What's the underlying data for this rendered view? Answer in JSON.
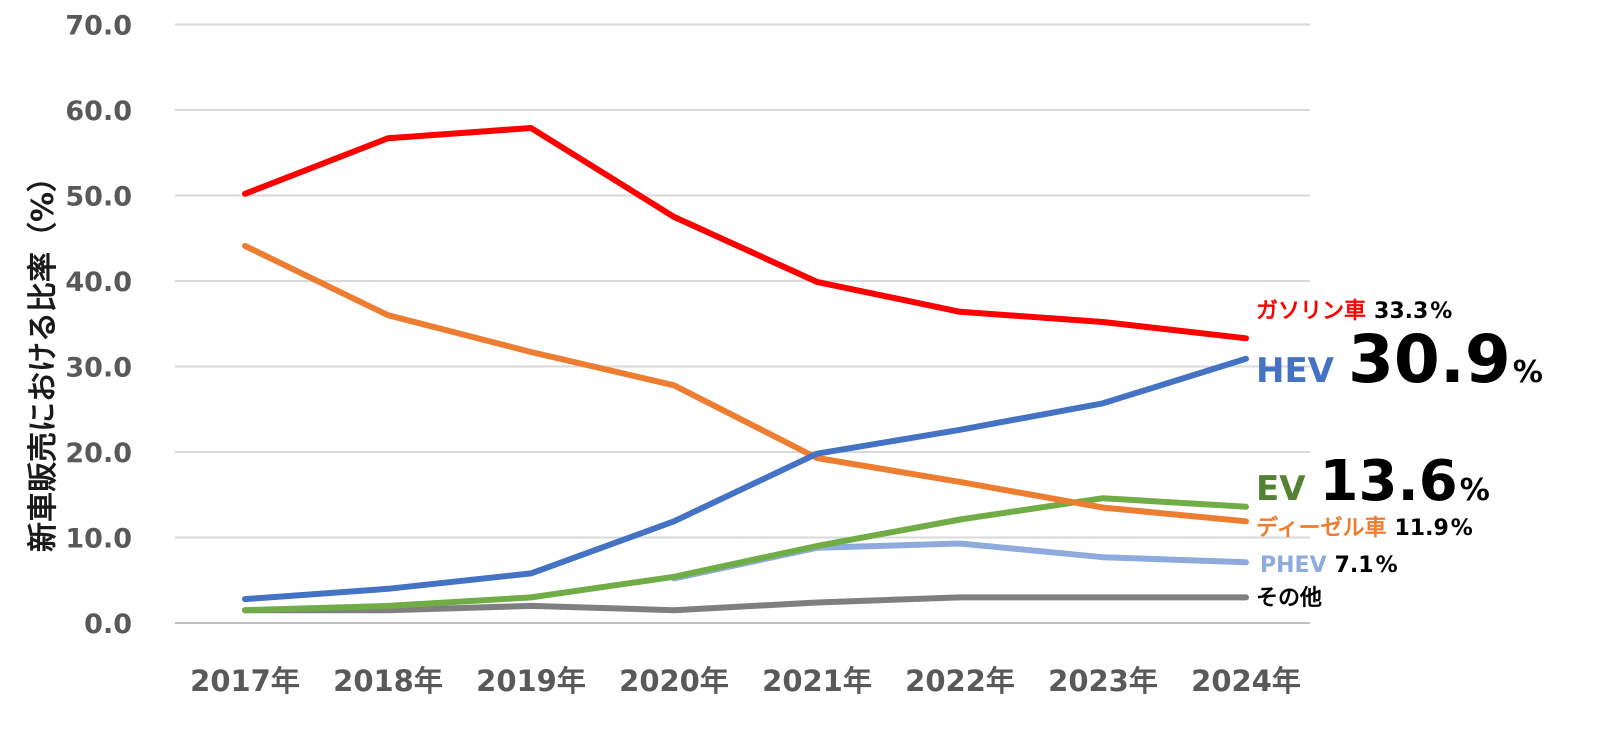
{
  "chart_data": {
    "type": "line",
    "title": "",
    "xlabel": "",
    "ylabel": "新車販売における比率（%）",
    "x": [
      "2017年",
      "2018年",
      "2019年",
      "2020年",
      "2021年",
      "2022年",
      "2023年",
      "2024年"
    ],
    "y_ticks": [
      "0.0",
      "10.0",
      "20.0",
      "30.0",
      "40.0",
      "50.0",
      "60.0",
      "70.0"
    ],
    "ylim": [
      0,
      70
    ],
    "grid": true,
    "series": [
      {
        "name": "ガソリン車",
        "color": "#ff0000",
        "values": [
          50.2,
          56.7,
          57.9,
          47.5,
          39.9,
          36.4,
          35.2,
          33.3
        ],
        "end_value": "33.3",
        "end_unit": "%"
      },
      {
        "name": "HEV",
        "color": "#4472c4",
        "values": [
          2.8,
          4.0,
          5.8,
          11.9,
          19.8,
          22.6,
          25.7,
          30.9
        ],
        "end_value": "30.9",
        "end_unit": "%"
      },
      {
        "name": "EV",
        "color": "#548235",
        "line_color": "#70ad47",
        "values": [
          1.5,
          2.0,
          3.0,
          5.4,
          9.0,
          12.1,
          14.6,
          13.6
        ],
        "end_value": "13.6",
        "end_unit": "%"
      },
      {
        "name": "ディーゼル車",
        "color": "#ed7d31",
        "values": [
          44.1,
          36.0,
          31.7,
          27.8,
          19.3,
          16.5,
          13.5,
          11.9
        ],
        "end_value": "11.9",
        "end_unit": "%"
      },
      {
        "name": "PHEV",
        "color": "#8faadc",
        "values": [
          null,
          null,
          null,
          5.2,
          8.8,
          9.3,
          7.7,
          7.1
        ],
        "end_value": "7.1",
        "end_unit": "%"
      },
      {
        "name": "その他",
        "color": "#000000",
        "line_color": "#7f7f7f",
        "values": [
          1.5,
          1.5,
          2.0,
          1.5,
          2.4,
          3.0,
          3.0,
          3.0
        ]
      }
    ]
  }
}
